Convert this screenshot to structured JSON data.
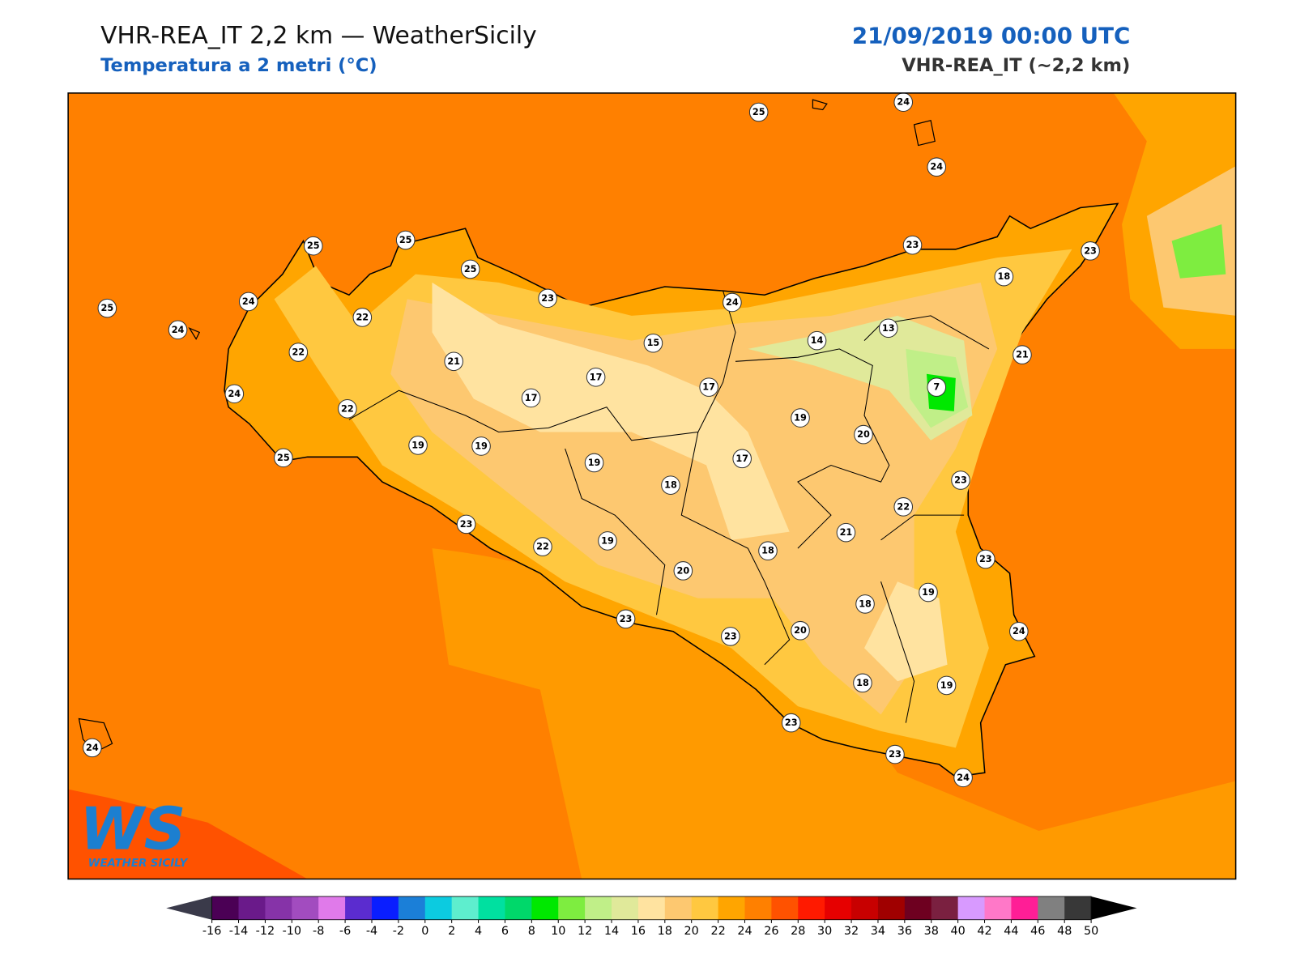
{
  "header": {
    "title": "VHR-REA_IT 2,2 km — WeatherSicily",
    "subtitle": "Temperatura a 2 metri (°C)",
    "date": "21/09/2019 00:00 UTC",
    "model": "VHR-REA_IT (~2,2 km)"
  },
  "stations": [
    25,
    24,
    24,
    25,
    25,
    25,
    23,
    24,
    23,
    23,
    18,
    25,
    24,
    22,
    24,
    22,
    21,
    15,
    14,
    13,
    21,
    17,
    17,
    7,
    17,
    24,
    22,
    19,
    20,
    19,
    19,
    19,
    17,
    18,
    23,
    22,
    25,
    23,
    21,
    22,
    19,
    18,
    23,
    20,
    19,
    18,
    23,
    20,
    24,
    23,
    18,
    19,
    23,
    23,
    24,
    24
  ],
  "logo": {
    "mark": "WS",
    "text": "WEATHER SICILY"
  },
  "colorbar": {
    "ticks": [
      -16,
      -14,
      -12,
      -10,
      -8,
      -6,
      -4,
      -2,
      0,
      2,
      4,
      6,
      8,
      10,
      12,
      14,
      16,
      18,
      20,
      22,
      24,
      26,
      28,
      30,
      32,
      34,
      36,
      38,
      40,
      42,
      44,
      46,
      48,
      50
    ],
    "colors": [
      "#4b0055",
      "#6a1a8a",
      "#8633a8",
      "#a24cbf",
      "#e07aea",
      "#5b2ccf",
      "#0a1eff",
      "#1b7fd8",
      "#0ccbe0",
      "#5eeece",
      "#00e0a0",
      "#00d86a",
      "#00e800",
      "#7eed40",
      "#c0ef88",
      "#e0e99a",
      "#ffe3a0",
      "#fdc870",
      "#ffc840",
      "#ffa500",
      "#ff8000",
      "#ff5200",
      "#ff1a00",
      "#e60000",
      "#c80000",
      "#a00000",
      "#6e0020",
      "#7a2040",
      "#d89aff",
      "#ff78c8",
      "#ff1e96",
      "#808080",
      "#383838"
    ],
    "under_color": "#3a3a4a",
    "over_color": "#000000"
  }
}
